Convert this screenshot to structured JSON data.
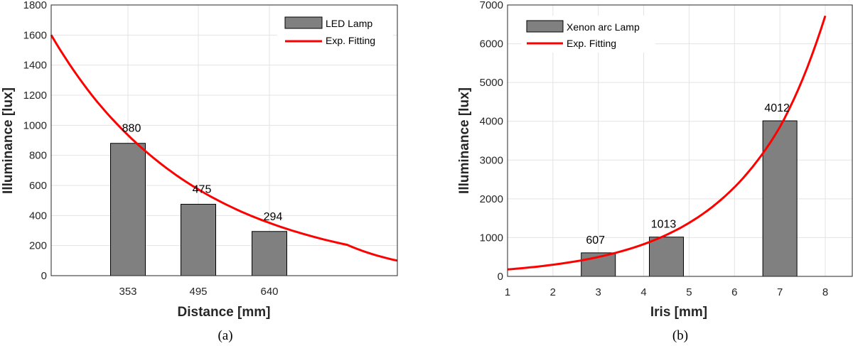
{
  "chart_data": [
    {
      "type": "bar",
      "caption": "(a)",
      "xlabel": "Distance [mm]",
      "ylabel": "Illuminance [lux]",
      "xtick_labels": [
        "353",
        "495",
        "640"
      ],
      "ylim": [
        0,
        1800
      ],
      "yticks": [
        0,
        200,
        400,
        600,
        800,
        1000,
        1200,
        1400,
        1600,
        1800
      ],
      "grid": true,
      "legend_position": "top-right",
      "colors": {
        "bar": "#808080",
        "fit": "#ff0000"
      },
      "series": [
        {
          "name": "LED Lamp",
          "type": "bar",
          "values": [
            880,
            475,
            294
          ],
          "labels": [
            "880",
            "475",
            "294"
          ]
        },
        {
          "name": "Exp. Fitting",
          "type": "line",
          "x": [
            210,
            300,
            400,
            500,
            600,
            700,
            800,
            900
          ],
          "y": [
            1600,
            1163,
            822,
            580,
            410,
            290,
            205,
            100
          ]
        }
      ]
    },
    {
      "type": "bar",
      "caption": "(b)",
      "xlabel": "Iris [mm]",
      "ylabel": "Illuminance [lux]",
      "xlim": [
        1,
        8
      ],
      "ylim": [
        0,
        7000
      ],
      "xticks": [
        1,
        2,
        3,
        4,
        5,
        6,
        7,
        8
      ],
      "yticks": [
        0,
        1000,
        2000,
        3000,
        4000,
        5000,
        6000,
        7000
      ],
      "grid": true,
      "legend_position": "top-left",
      "colors": {
        "bar": "#808080",
        "fit": "#ff0000"
      },
      "series": [
        {
          "name": "Xenon arc Lamp",
          "type": "bar",
          "x": [
            3,
            4.5,
            7
          ],
          "values": [
            607,
            1013,
            4012
          ],
          "labels": [
            "607",
            "1013",
            "4012"
          ]
        },
        {
          "name": "Exp. Fitting",
          "type": "line",
          "x": [
            1,
            2,
            3,
            4,
            5,
            6,
            7,
            8
          ],
          "y": [
            180,
            300,
            500,
            830,
            1380,
            2300,
            3850,
            6720
          ]
        }
      ]
    }
  ]
}
